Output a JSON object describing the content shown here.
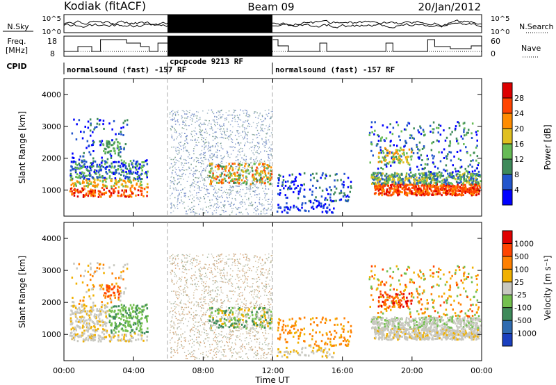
{
  "header": {
    "station": "Kodiak (fitACF)",
    "beam": "Beam 09",
    "date": "20/Jan/2012"
  },
  "top_panels": {
    "nsky_label": "N.Sky",
    "nsearch_label": "N.Search",
    "nsky_ticks": [
      "10^5",
      "10^0"
    ],
    "nsearch_ticks": [
      "10^5",
      "10^0"
    ],
    "freq_label_1": "Freq.",
    "freq_label_2": "[MHz]",
    "freq_ticks": [
      "18",
      "8"
    ],
    "nave_label": "Nave",
    "nave_ticks": [
      "60",
      "0"
    ],
    "cpid_label": "CPID",
    "cpid_segments": [
      {
        "label": "normalsound (fast) -157 RF",
        "start_h": 0,
        "end_h": 6
      },
      {
        "label": "cpcpcode 9213 RF",
        "start_h": 6,
        "end_h": 12
      },
      {
        "label": "normalsound (fast) -157 RF",
        "start_h": 12,
        "end_h": 24
      }
    ]
  },
  "colorbars": {
    "power": {
      "label": "Power [dB]",
      "ticks": [
        "4",
        "8",
        "12",
        "16",
        "20",
        "24",
        "28"
      ],
      "colors": [
        "#0000ff",
        "#2255cc",
        "#3e8a5a",
        "#66bb55",
        "#e0c020",
        "#ff8c00",
        "#ff4400",
        "#dd0000"
      ]
    },
    "velocity": {
      "label": "Velocity [m s⁻¹]",
      "ticks": [
        "1000",
        "500",
        "100",
        "25",
        "-25",
        "-100",
        "-500",
        "-1000"
      ],
      "colors": [
        "#1a3fbf",
        "#2f6bb0",
        "#3e8a5a",
        "#74c04f",
        "#c8c8c0",
        "#f0b000",
        "#ff8000",
        "#ff4400",
        "#e00000"
      ]
    }
  },
  "chart_data": [
    {
      "type": "heatmap",
      "name": "power",
      "xlabel": "Time UT",
      "ylabel": "Slant Range [km]",
      "xlim": [
        "00:00",
        "24:00"
      ],
      "ylim": [
        180,
        4500
      ],
      "x_ticks": [
        "00:00",
        "04:00",
        "08:00",
        "12:00",
        "16:00",
        "20:00",
        "00:00"
      ],
      "y_ticks": [
        1000,
        2000,
        3000,
        4000
      ],
      "boundaries_h": [
        6,
        12
      ]
    },
    {
      "type": "heatmap",
      "name": "velocity",
      "xlabel": "Time UT",
      "ylabel": "Slant Range [km]",
      "xlim": [
        "00:00",
        "24:00"
      ],
      "ylim": [
        180,
        4500
      ],
      "x_ticks": [
        "00:00",
        "04:00",
        "08:00",
        "12:00",
        "16:00",
        "20:00",
        "00:00"
      ],
      "y_ticks": [
        1000,
        2000,
        3000,
        4000
      ],
      "boundaries_h": [
        6,
        12
      ]
    }
  ],
  "x_axis": {
    "ticks": [
      "00:00",
      "04:00",
      "08:00",
      "12:00",
      "16:00",
      "20:00",
      "00:00"
    ],
    "label": "Time UT"
  }
}
